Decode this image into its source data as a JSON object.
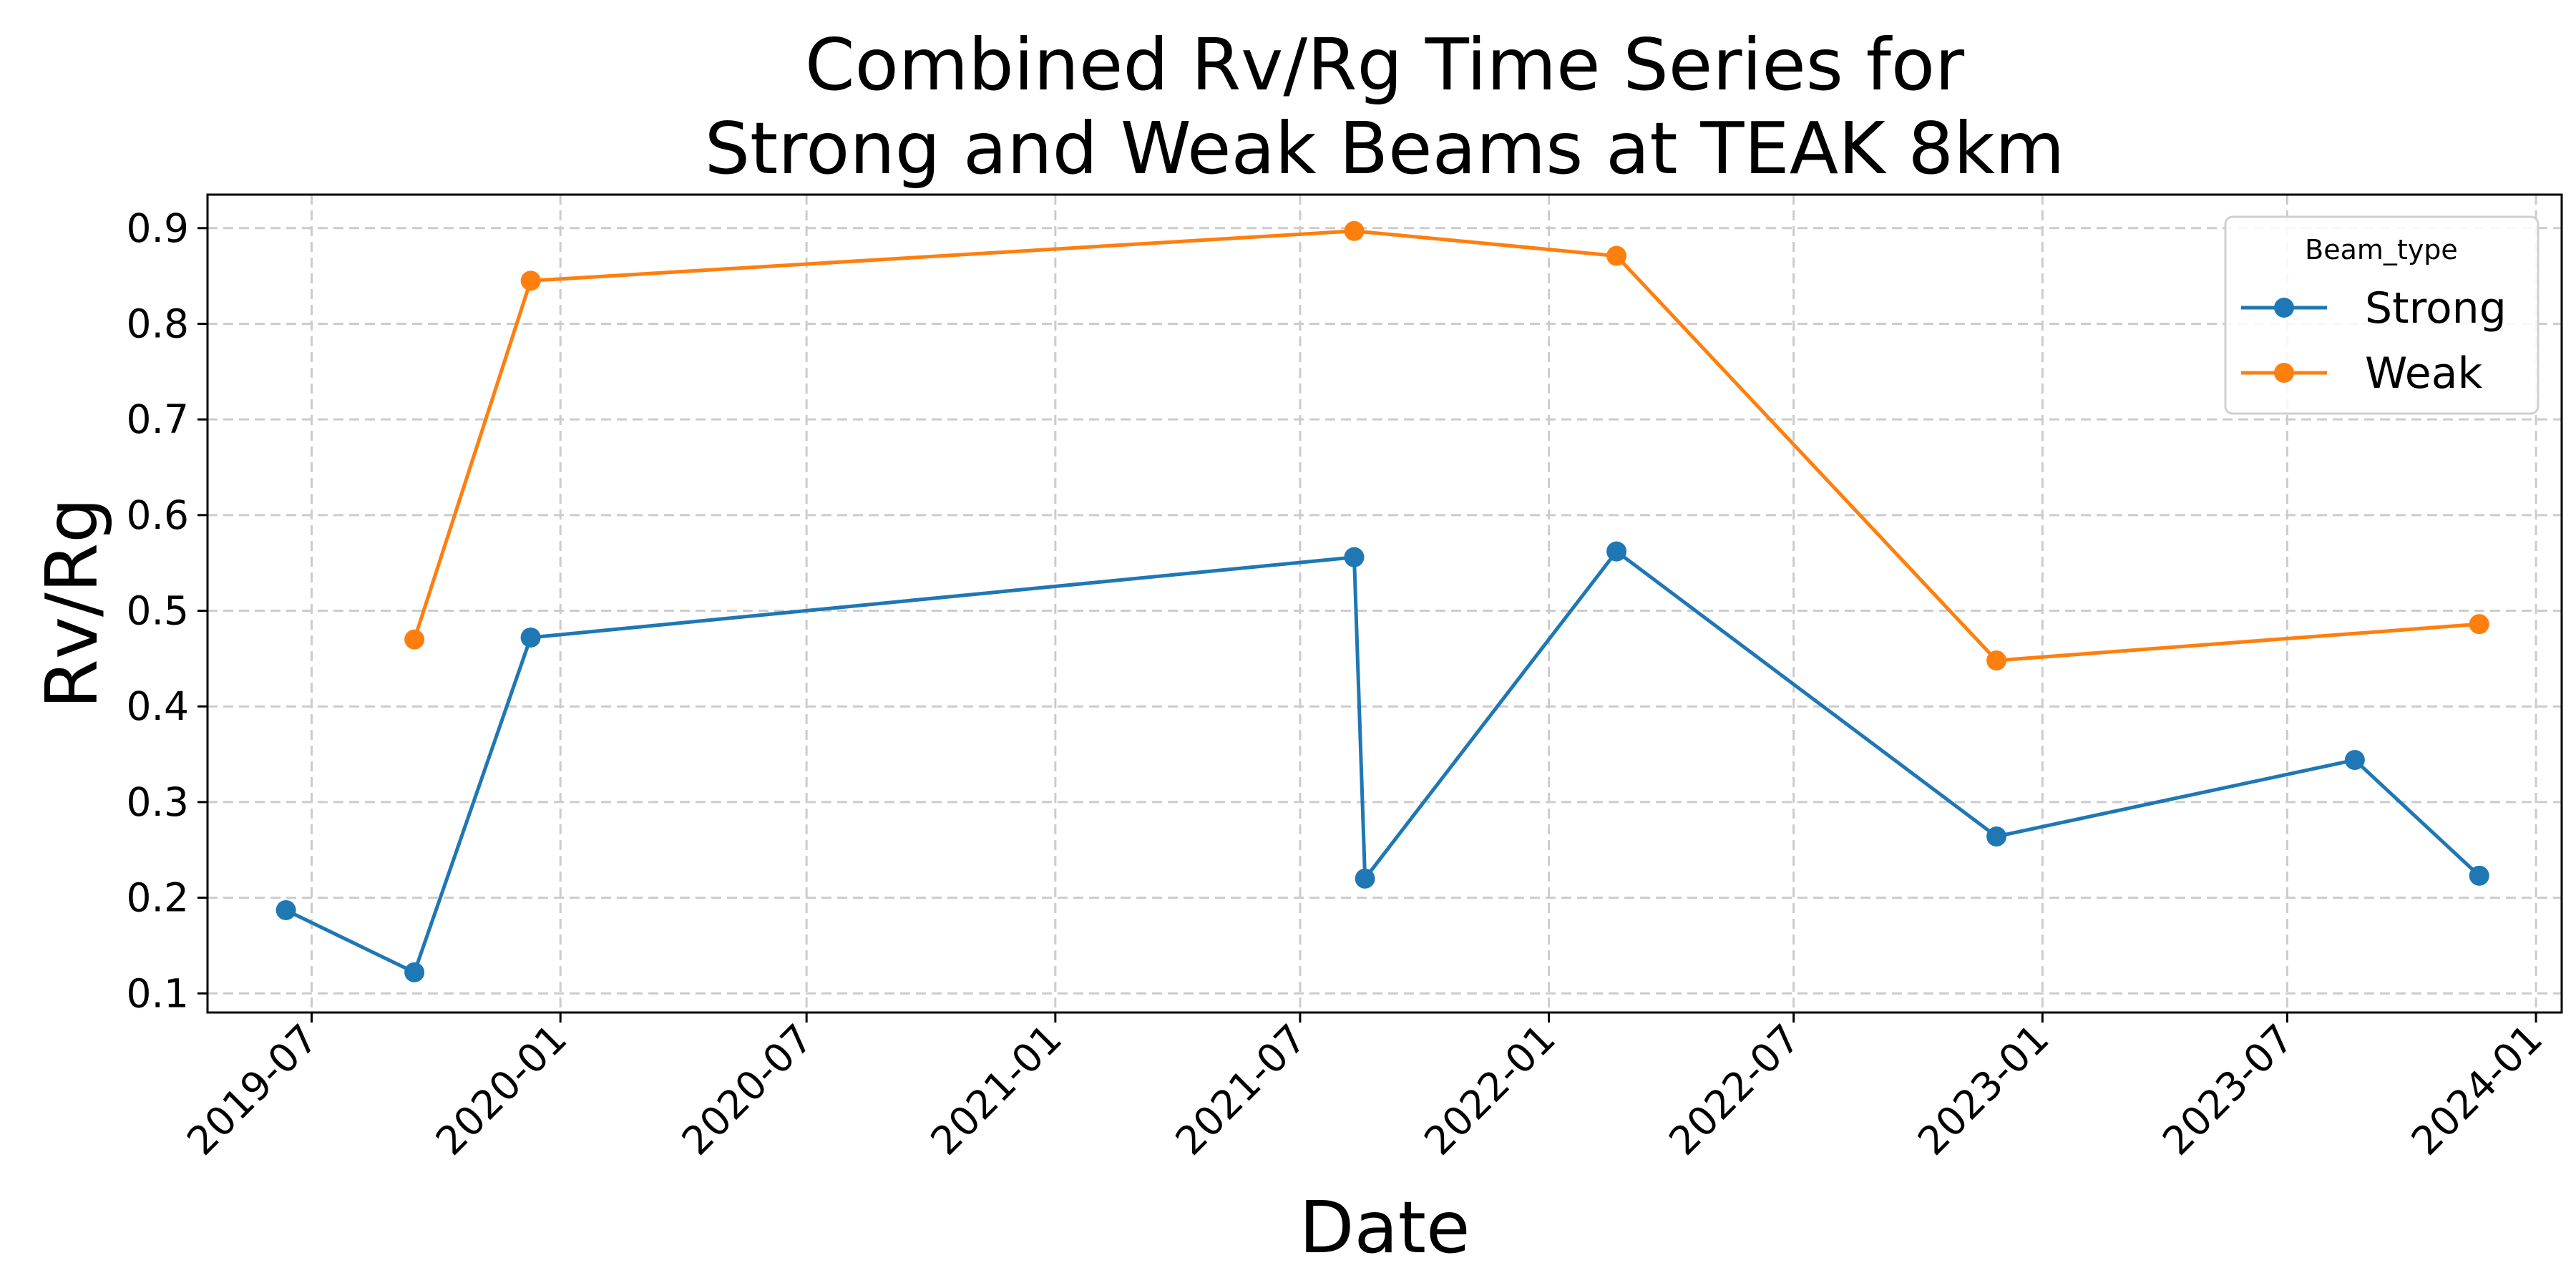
{
  "chart_data": {
    "type": "line",
    "title_lines": [
      "Combined Rv/Rg Time Series for",
      "Strong and Weak Beams at TEAK 8km"
    ],
    "xlabel": "Date",
    "ylabel": "Rv/Rg",
    "xlim": [
      "2019-04-15",
      "2024-01-20"
    ],
    "ylim": [
      0.08,
      0.935
    ],
    "x_ticks": [
      "2019-07",
      "2020-01",
      "2020-07",
      "2021-01",
      "2021-07",
      "2022-01",
      "2022-07",
      "2023-01",
      "2023-07",
      "2024-01"
    ],
    "y_ticks": [
      "0.1",
      "0.2",
      "0.3",
      "0.4",
      "0.5",
      "0.6",
      "0.7",
      "0.8",
      "0.9"
    ],
    "grid": true,
    "legend": {
      "title": "Beam_type",
      "placement": "upper-right"
    },
    "series": [
      {
        "name": "Strong",
        "color": "#1f77b4",
        "points": [
          {
            "x": "2019-06-12",
            "y": 0.187
          },
          {
            "x": "2019-09-15",
            "y": 0.122
          },
          {
            "x": "2019-12-10",
            "y": 0.472
          },
          {
            "x": "2021-08-10",
            "y": 0.556
          },
          {
            "x": "2021-08-18",
            "y": 0.22
          },
          {
            "x": "2022-02-20",
            "y": 0.562
          },
          {
            "x": "2022-11-28",
            "y": 0.264
          },
          {
            "x": "2023-08-20",
            "y": 0.344
          },
          {
            "x": "2023-11-20",
            "y": 0.223
          }
        ]
      },
      {
        "name": "Weak",
        "color": "#ff7f0e",
        "points": [
          {
            "x": "2019-09-15",
            "y": 0.47
          },
          {
            "x": "2019-12-10",
            "y": 0.845
          },
          {
            "x": "2021-08-10",
            "y": 0.897
          },
          {
            "x": "2022-02-20",
            "y": 0.871
          },
          {
            "x": "2022-11-28",
            "y": 0.448
          },
          {
            "x": "2023-11-20",
            "y": 0.486
          }
        ]
      }
    ]
  }
}
